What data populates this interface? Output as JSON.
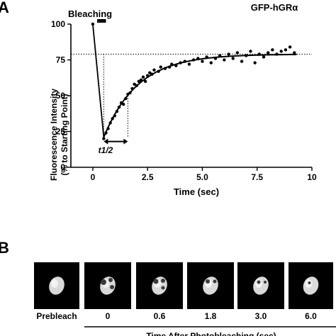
{
  "panel_a": {
    "letter": "A"
  },
  "panel_b": {
    "letter": "B"
  },
  "chart_data": {
    "type": "scatter",
    "title": "GFP-hGRα",
    "xlabel": "Time (sec)",
    "ylabel_lines": [
      "Fluorescence Intensity",
      "(% to Starting Point)"
    ],
    "xlim": [
      -1,
      10
    ],
    "ylim": [
      0,
      100
    ],
    "xticks": [
      "0",
      "2.5",
      "5.0",
      "7.5",
      "10"
    ],
    "yticks": [
      "0",
      "25",
      "50",
      "75",
      "100"
    ],
    "grid": false,
    "annotations": {
      "bleaching": "Bleaching",
      "half_time": "t1/2"
    },
    "bleach_interval": [
      0.2,
      0.6
    ],
    "reference_level": 79,
    "half_time_interval": [
      0.5,
      1.6
    ],
    "fit_curve": {
      "plateau": 79,
      "start_x": 0.5,
      "start_y": 21,
      "rate": 0.64,
      "x_max": 9.3
    },
    "bleach_drop": {
      "x": [
        0,
        0.5
      ],
      "y": [
        100,
        21
      ]
    },
    "points": {
      "x": [
        0.0,
        0.5,
        0.6,
        0.7,
        0.8,
        0.9,
        1.0,
        1.1,
        1.2,
        1.3,
        1.4,
        1.5,
        1.6,
        1.7,
        1.8,
        1.9,
        2.0,
        2.1,
        2.2,
        2.3,
        2.4,
        2.5,
        2.6,
        2.7,
        2.8,
        3.0,
        3.1,
        3.3,
        3.5,
        3.6,
        3.8,
        4.0,
        4.2,
        4.4,
        4.6,
        4.8,
        5.0,
        5.2,
        5.4,
        5.6,
        5.8,
        6.0,
        6.2,
        6.4,
        6.6,
        6.8,
        7.0,
        7.2,
        7.4,
        7.6,
        7.8,
        8.0,
        8.2,
        8.4,
        8.6,
        8.8,
        9.0,
        9.2
      ],
      "y": [
        100,
        20,
        24,
        27,
        31,
        34,
        36,
        39,
        42,
        45,
        44,
        48,
        51,
        52,
        55,
        58,
        57,
        60,
        61,
        63,
        60,
        64,
        66,
        65,
        68,
        67,
        70,
        69,
        70,
        72,
        71,
        73,
        74,
        72,
        75,
        76,
        74,
        77,
        73,
        76,
        78,
        75,
        79,
        76,
        80,
        74,
        78,
        81,
        73,
        79,
        77,
        80,
        82,
        79,
        81,
        82,
        84,
        80
      ]
    }
  },
  "micrographs": {
    "labels": [
      "Prebleach",
      "0",
      "0.6",
      "1.8",
      "3.0",
      "6.0"
    ],
    "xaxis_label": "Time After Photobleaching (sec)"
  }
}
